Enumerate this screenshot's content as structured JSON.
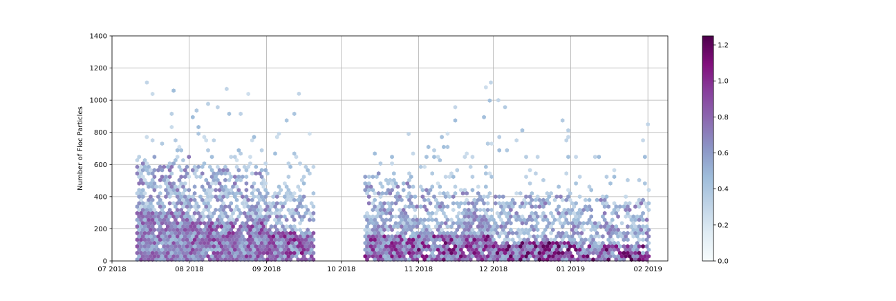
{
  "chart_data": {
    "type": "heatmap",
    "subtype": "hexbin",
    "title": "",
    "xlabel": "",
    "ylabel": "Number of Floc Particles",
    "grid": true,
    "xlim": [
      "2018-07-01",
      "2019-02-09"
    ],
    "ylim": [
      0,
      1400
    ],
    "x_ticks": [
      "2018-07-01",
      "2018-08-01",
      "2018-09-01",
      "2018-10-01",
      "2018-11-01",
      "2018-12-01",
      "2019-01-01",
      "2019-02-01"
    ],
    "x_tick_labels": [
      "07 2018",
      "08 2018",
      "09 2018",
      "10 2018",
      "11 2018",
      "12 2018",
      "01 2019",
      "02 2019"
    ],
    "y_ticks": [
      0,
      200,
      400,
      600,
      800,
      1000,
      1200,
      1400
    ],
    "y_tick_labels": [
      "0",
      "200",
      "400",
      "600",
      "800",
      "1000",
      "1200",
      "1400"
    ],
    "colormap": "BuPu",
    "colormap_stops": [
      "#f7fcfd",
      "#e0ecf4",
      "#bfd3e6",
      "#9ebcda",
      "#8c96c6",
      "#8c6bb1",
      "#88419d",
      "#810f7c",
      "#4d004b"
    ],
    "colorbar": {
      "min": 0.0,
      "max": 1.25,
      "ticks": [
        0.0,
        0.2,
        0.4,
        0.6,
        0.8,
        1.0,
        1.2
      ],
      "tick_labels": [
        "0.0",
        "0.2",
        "0.4",
        "0.6",
        "0.8",
        "1.0",
        "1.2"
      ]
    },
    "data_periods": [
      {
        "start": "2018-07-11",
        "end": "2018-09-19"
      },
      {
        "start": "2018-10-10",
        "end": "2019-02-01"
      }
    ],
    "regions": [
      {
        "start": "2018-07-11",
        "end": "2018-07-31",
        "y_max": 1150,
        "bulk_top": 650,
        "dark_top": 300,
        "peak_value": 0.9,
        "peak_date": "2018-07-15",
        "peak_count": 1110
      },
      {
        "start": "2018-08-01",
        "end": "2018-08-31",
        "y_max": 1080,
        "bulk_top": 600,
        "dark_top": 250,
        "peak_value": 1.0,
        "peak_date": "2018-08-16",
        "peak_count": 1070
      },
      {
        "start": "2018-09-01",
        "end": "2018-09-19",
        "y_max": 1040,
        "bulk_top": 450,
        "dark_top": 180,
        "peak_value": 1.1,
        "peak_date": "2018-09-14",
        "peak_count": 1040
      },
      {
        "start": "2018-10-10",
        "end": "2018-10-31",
        "y_max": 790,
        "bulk_top": 550,
        "dark_top": 170,
        "peak_value": 1.1,
        "peak_date": "2018-10-28",
        "peak_count": 790
      },
      {
        "start": "2018-11-01",
        "end": "2018-11-30",
        "y_max": 1110,
        "bulk_top": 450,
        "dark_top": 170,
        "peak_value": 1.2,
        "peak_date": "2018-11-30",
        "peak_count": 1110
      },
      {
        "start": "2018-12-01",
        "end": "2018-12-31",
        "y_max": 1000,
        "bulk_top": 400,
        "dark_top": 120,
        "peak_value": 1.25,
        "peak_date": "2018-12-03",
        "peak_count": 1000
      },
      {
        "start": "2019-01-01",
        "end": "2019-02-01",
        "y_max": 850,
        "bulk_top": 380,
        "dark_top": 100,
        "peak_value": 1.25,
        "peak_date": "2019-02-01",
        "peak_count": 850
      }
    ]
  }
}
